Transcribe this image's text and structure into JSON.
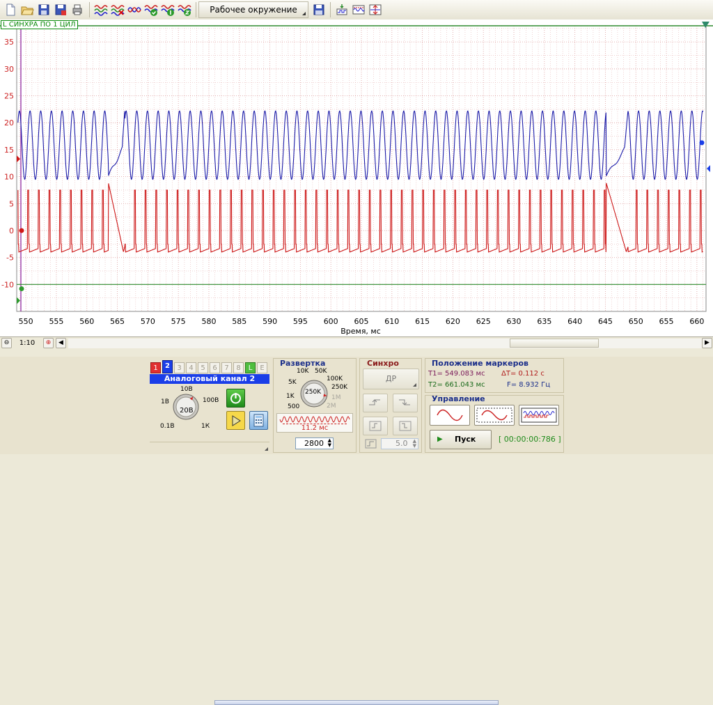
{
  "toolbar": {
    "env_label": "Рабочее окружение",
    "icons": [
      "new-file-icon",
      "open-folder-icon",
      "save-icon",
      "save-as-icon",
      "print-icon",
      "waves-icon",
      "waves-cross-icon",
      "waves-split-icon",
      "waves-check-icon",
      "waves-number-icon",
      "waves-multi-icon",
      "save-env-icon",
      "sync-icon",
      "screen-wave-icon",
      "screen-fit-icon"
    ]
  },
  "plot": {
    "channel_label": "L СИНХРА ПО 1 ЦИЛ",
    "x_axis_label": "Время, мс",
    "x_ticks": [
      "550",
      "555",
      "560",
      "565",
      "570",
      "575",
      "580",
      "585",
      "590",
      "595",
      "600",
      "605",
      "610",
      "615",
      "620",
      "625",
      "630",
      "635",
      "640",
      "645",
      "650",
      "655",
      "660"
    ],
    "y_ticks": [
      "35",
      "30",
      "25",
      "20",
      "15",
      "10",
      "5",
      "0",
      "-5",
      "-10"
    ],
    "colors": {
      "channel1": "#cc1414",
      "channel2": "#1a1aa8",
      "grid": "#e0a6a6",
      "sync_line": "#2e8b2e"
    }
  },
  "chart_data": {
    "type": "line",
    "title": "",
    "xlabel": "Время, мс",
    "ylabel": "",
    "xlim": [
      548.5,
      661.5
    ],
    "ylim": [
      -15,
      38
    ],
    "grid": true,
    "series": [
      {
        "color": "#1a1aa8",
        "pattern": "sine",
        "min": 9.5,
        "max": 22.2,
        "period_ms": 1.75
      },
      {
        "color": "#cc1414",
        "pattern": "pulse",
        "high": 7.5,
        "low": -4.0,
        "period_ms": 1.75
      }
    ],
    "gaps": [
      {
        "from": 563.5,
        "to": 566.2
      },
      {
        "from": 645.1,
        "to": 648.7
      }
    ],
    "sync_level": -10
  },
  "scrollbar": {
    "zoom": "1:10"
  },
  "channel_panel": {
    "channel_numbers": [
      "1",
      "2",
      "3",
      "4",
      "5",
      "6",
      "7",
      "8",
      "L",
      "E"
    ],
    "active_channel": "2",
    "channel_name": "Аналоговый канал 2",
    "knob_labels": [
      "10В",
      "20В",
      "100В",
      "1В",
      "1К",
      "0.1В"
    ]
  },
  "sweep_panel": {
    "title": "Развертка",
    "knob_labels": [
      "10K",
      "50K",
      "5K",
      "100K",
      "250K",
      "1K",
      "1M",
      "500",
      "2M"
    ],
    "center_value": "250K",
    "duration": "11.2 мс",
    "spin_value": "2800"
  },
  "sync_panel": {
    "title": "Синхро",
    "mode_button": "ДР",
    "level_value": "5.0"
  },
  "markers_panel": {
    "title": "Положение маркеров",
    "t1": "T1= 549.083 мс",
    "t2": "T2= 661.043 мс",
    "dt": "ΔT= 0.112 с",
    "freq": "F= 8.932 Гц"
  },
  "control_panel": {
    "title": "Управление",
    "start_label": "Пуск",
    "timer": "[ 00:00:00:786 ]"
  }
}
